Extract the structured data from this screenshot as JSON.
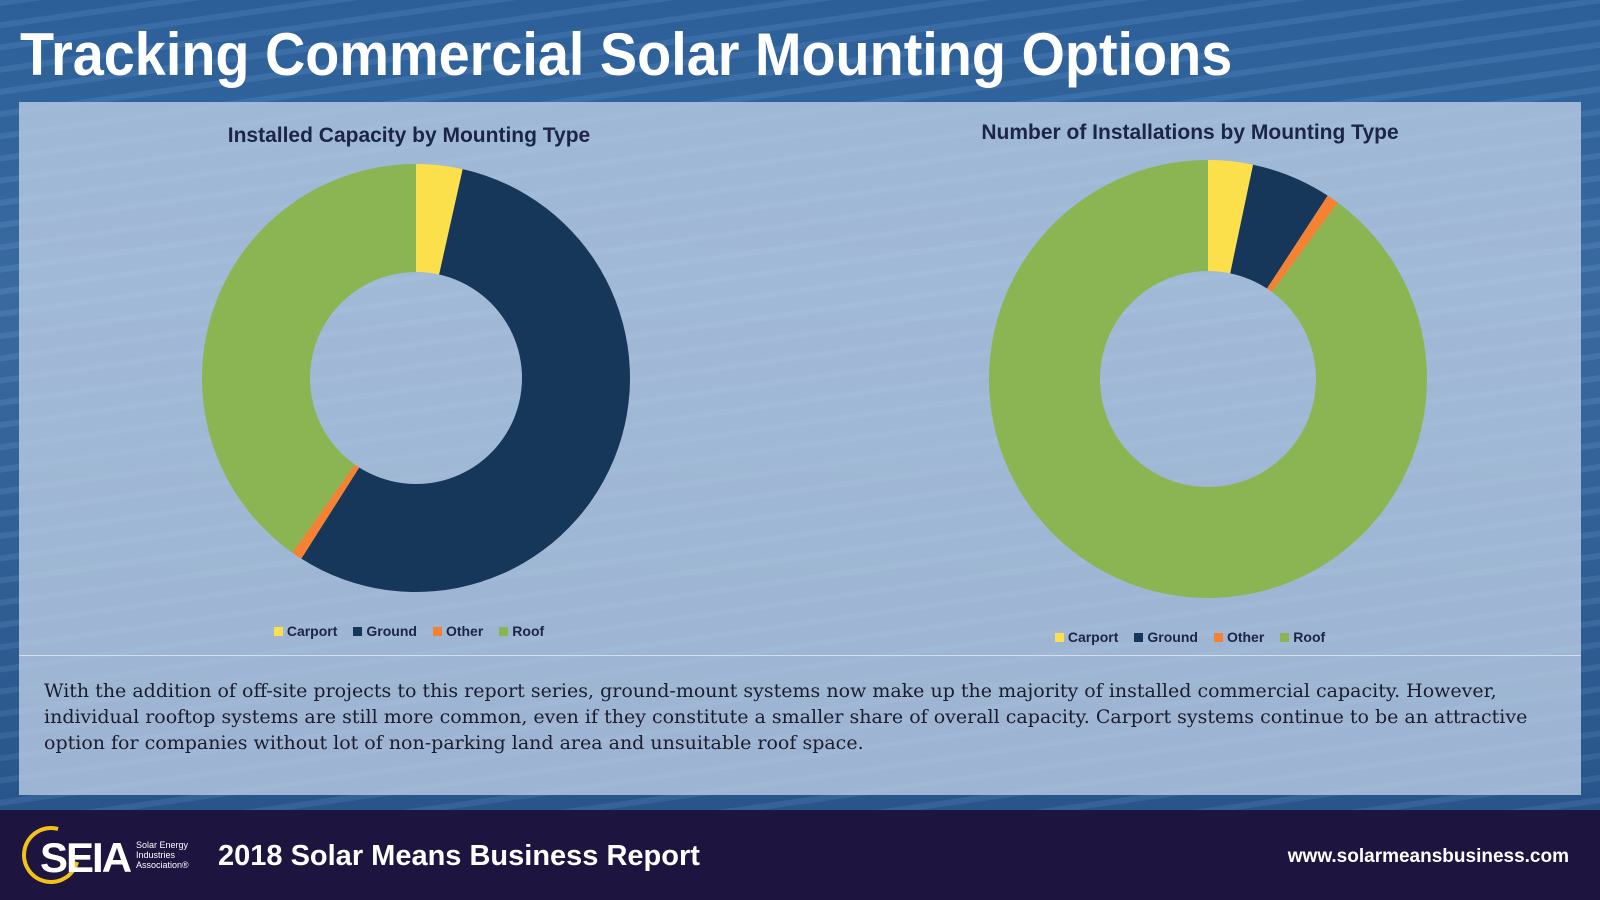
{
  "page": {
    "title": "Tracking Commercial Solar Mounting Options",
    "description": "With the addition of off-site projects to this report series, ground-mount systems now make up the majority of installed commercial capacity. However, individual rooftop systems are still more common, even if they constitute a smaller share of overall capacity. Carport systems continue to be an attractive option for companies without lot of non-parking land area and unsuitable roof space."
  },
  "colors": {
    "carport": "#fbe04b",
    "ground": "#17375a",
    "other": "#f58232",
    "roof": "#8bb553"
  },
  "chart_data": [
    {
      "type": "pie",
      "subtype": "donut",
      "title": "Installed Capacity by Mounting Type",
      "categories": [
        "Carport",
        "Ground",
        "Other",
        "Roof"
      ],
      "values": [
        3.5,
        55.5,
        0.8,
        40.2
      ],
      "unit": "percent",
      "legend": "bottom"
    },
    {
      "type": "pie",
      "subtype": "donut",
      "title": "Number of Installations by Mounting Type",
      "categories": [
        "Carport",
        "Ground",
        "Other",
        "Roof"
      ],
      "values": [
        3.3,
        5.9,
        0.9,
        89.9
      ],
      "unit": "percent",
      "legend": "bottom"
    }
  ],
  "footer": {
    "logo_text": "SEIA",
    "logo_subtext": "Solar Energy Industries Association®",
    "report_title": "2018 Solar Means Business Report",
    "website": "www.solarmeansbusiness.com"
  }
}
